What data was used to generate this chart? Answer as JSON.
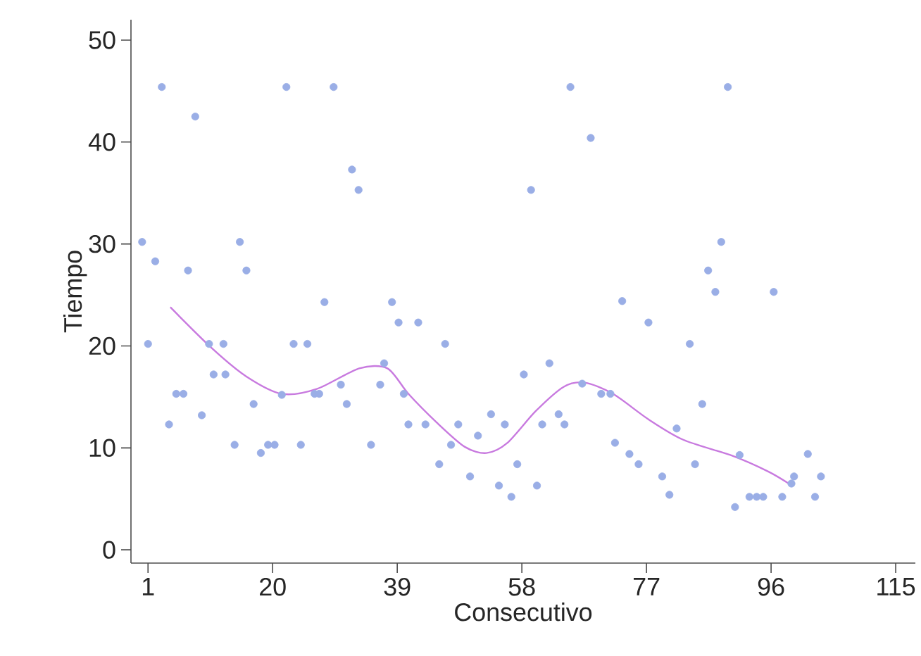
{
  "chart_data": {
    "type": "scatter",
    "xlabel": "Consecutivo",
    "ylabel": "Tiempo",
    "xlim": [
      -1.6,
      118
    ],
    "ylim": [
      -1.3,
      52
    ],
    "xticks": [
      1,
      20,
      39,
      58,
      77,
      96,
      115
    ],
    "yticks": [
      0,
      10,
      20,
      30,
      40,
      50
    ],
    "marker": "circle",
    "grid": false,
    "legend": false,
    "series": [
      {
        "color": "#9aaee6",
        "x": [
          3.1,
          8.2,
          22.1,
          29.3,
          32.1,
          33.1,
          0.1,
          15,
          2.1,
          7.1,
          16,
          27.9,
          38.2,
          39.2,
          1,
          10.3,
          12.5,
          23.2,
          25.3,
          11,
          12.8,
          37,
          5.3,
          6.4,
          17.1,
          21.4,
          26.4,
          27.1,
          30.4,
          31.3,
          36.4,
          40,
          40.7,
          9.2,
          4.2,
          14.2,
          18.2,
          19.3,
          20.3,
          24.3,
          35,
          65.4,
          68.5,
          59.4,
          42.2,
          46.3,
          73.3,
          77.3,
          62.2,
          58.3,
          67.2,
          70.1,
          71.5,
          43.3,
          48.3,
          53.3,
          55.4,
          51.3,
          47.2,
          61.1,
          63.6,
          64.5,
          45.4,
          50.1,
          57.3,
          54.5,
          56.4,
          60.3,
          72.2,
          74.4,
          75.8,
          79.4,
          80.5,
          89.4,
          88.4,
          86.4,
          87.5,
          96.4,
          83.6,
          85.5,
          81.6,
          84.4,
          91.2,
          101.6,
          103.6,
          99.5,
          90.5,
          92.7,
          93.8,
          94.8,
          97.7,
          102.7,
          99.1
        ],
        "values": [
          45.4,
          42.5,
          45.4,
          45.4,
          37.3,
          35.3,
          30.2,
          30.2,
          28.3,
          27.4,
          27.4,
          24.3,
          24.3,
          22.3,
          20.2,
          20.2,
          20.2,
          20.2,
          20.2,
          17.2,
          17.2,
          18.3,
          15.3,
          15.3,
          14.3,
          15.2,
          15.3,
          15.3,
          16.2,
          14.3,
          16.2,
          15.3,
          12.3,
          13.2,
          12.3,
          10.3,
          9.5,
          10.3,
          10.3,
          10.3,
          10.3,
          45.4,
          40.4,
          35.3,
          22.3,
          20.2,
          24.4,
          22.3,
          18.3,
          17.2,
          16.3,
          15.3,
          15.3,
          12.3,
          12.3,
          13.3,
          12.3,
          11.2,
          10.3,
          12.3,
          13.3,
          12.3,
          8.4,
          7.2,
          8.4,
          6.3,
          5.2,
          6.3,
          10.5,
          9.4,
          8.4,
          7.2,
          5.4,
          45.4,
          30.2,
          27.4,
          25.3,
          25.3,
          20.2,
          14.3,
          11.9,
          8.4,
          9.3,
          9.4,
          7.2,
          7.2,
          4.2,
          5.2,
          5.2,
          5.2,
          5.2,
          5.2,
          6.5
        ]
      },
      {
        "type": "line",
        "color": "#c87adf",
        "marker": "none",
        "x": [
          4.4,
          10.7,
          16,
          21.4,
          26.8,
          33.2,
          37.5,
          40.7,
          45,
          49.3,
          52.6,
          55.8,
          60.1,
          64.4,
          67.6,
          71.9,
          77.3,
          82.6,
          90.2,
          95.5,
          98.7
        ],
        "values": [
          23.8,
          19.8,
          17,
          15.3,
          15.8,
          17.8,
          17.8,
          15.3,
          12.5,
          10.1,
          9.5,
          10.5,
          13.6,
          16,
          16.4,
          15.3,
          12.8,
          10.8,
          9.2,
          7.7,
          6.5
        ]
      }
    ]
  }
}
